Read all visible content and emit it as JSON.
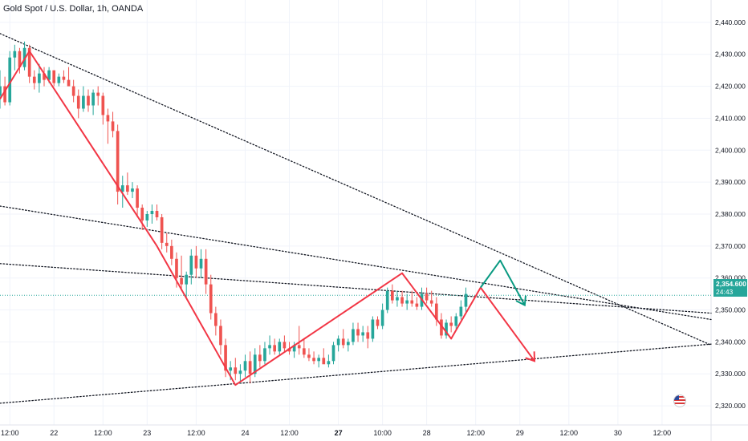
{
  "header": {
    "title": "Gold Spot / U.S. Dollar, 1h, OANDA"
  },
  "price_badge": {
    "price": "2,354.600",
    "countdown": "24:43",
    "color": "#26a69a"
  },
  "icons": {
    "flag": "us-flag-icon"
  },
  "colors": {
    "up": "#26a69a",
    "down": "#ef5350",
    "projection_red": "#f23645",
    "projection_green": "#089981",
    "trendline": "#131722",
    "grid": "#f0f3fa"
  },
  "chart_data": {
    "type": "candlestick",
    "title": "Gold Spot / U.S. Dollar, 1h, OANDA",
    "y_axis": {
      "position": "right",
      "range": [
        2314,
        2447
      ],
      "ticks": [
        2320,
        2330,
        2340,
        2350,
        2360,
        2370,
        2380,
        2390,
        2400,
        2410,
        2420,
        2430,
        2440
      ],
      "tick_labels": [
        "2,320.000",
        "2,330.000",
        "2,340.000",
        "2,350.000",
        "2,360.000",
        "2,370.000",
        "2,380.000",
        "2,390.000",
        "2,400.000",
        "2,410.000",
        "2,420.000",
        "2,430.000",
        "2,440.000"
      ]
    },
    "x_axis": {
      "range": [
        0,
        145
      ],
      "ticks": [
        {
          "x": 2,
          "label": "12:00"
        },
        {
          "x": 11,
          "label": "22"
        },
        {
          "x": 21,
          "label": "12:00"
        },
        {
          "x": 30,
          "label": "23"
        },
        {
          "x": 40,
          "label": "12:00"
        },
        {
          "x": 50,
          "label": "24"
        },
        {
          "x": 59,
          "label": "12:00"
        },
        {
          "x": 69,
          "label": "27",
          "bold": true
        },
        {
          "x": 78,
          "label": "10:00"
        },
        {
          "x": 87,
          "label": "28"
        },
        {
          "x": 97,
          "label": "12:00"
        },
        {
          "x": 106,
          "label": "29"
        },
        {
          "x": 116,
          "label": "12:00"
        },
        {
          "x": 126,
          "label": "30"
        },
        {
          "x": 135,
          "label": "12:00"
        }
      ]
    },
    "last_price": 2354.6,
    "candles": [
      [
        0,
        2417,
        2425,
        2413,
        2420
      ],
      [
        1,
        2420,
        2423,
        2414,
        2415
      ],
      [
        2,
        2415,
        2431,
        2414,
        2429
      ],
      [
        3,
        2429,
        2433,
        2425,
        2431
      ],
      [
        4,
        2431,
        2432,
        2424,
        2426
      ],
      [
        5,
        2426,
        2434,
        2425,
        2432
      ],
      [
        6,
        2432,
        2433,
        2421,
        2423
      ],
      [
        7,
        2423,
        2425,
        2419,
        2421
      ],
      [
        8,
        2421,
        2427,
        2418,
        2424
      ],
      [
        9,
        2424,
        2426,
        2420,
        2422
      ],
      [
        10,
        2422,
        2426,
        2421,
        2425
      ],
      [
        11,
        2425,
        2425,
        2420,
        2421
      ],
      [
        12,
        2421,
        2424,
        2420,
        2423
      ],
      [
        13,
        2423,
        2425,
        2421,
        2422
      ],
      [
        14,
        2422,
        2426,
        2421,
        2420
      ],
      [
        15,
        2420,
        2422,
        2415,
        2417
      ],
      [
        16,
        2417,
        2419,
        2410,
        2413
      ],
      [
        17,
        2413,
        2420,
        2412,
        2417
      ],
      [
        18,
        2417,
        2419,
        2412,
        2414
      ],
      [
        19,
        2414,
        2419,
        2411,
        2418
      ],
      [
        20,
        2418,
        2420,
        2414,
        2417
      ],
      [
        21,
        2417,
        2418,
        2408,
        2411
      ],
      [
        22,
        2411,
        2413,
        2402,
        2409
      ],
      [
        23,
        2409,
        2412,
        2404,
        2406
      ],
      [
        24,
        2406,
        2408,
        2383,
        2387
      ],
      [
        25,
        2387,
        2392,
        2382,
        2389
      ],
      [
        26,
        2389,
        2393,
        2386,
        2387
      ],
      [
        27,
        2387,
        2390,
        2385,
        2388
      ],
      [
        28,
        2388,
        2389,
        2379,
        2382
      ],
      [
        29,
        2382,
        2383,
        2375,
        2378
      ],
      [
        30,
        2378,
        2381,
        2376,
        2380
      ],
      [
        31,
        2380,
        2383,
        2377,
        2381
      ],
      [
        32,
        2381,
        2383,
        2378,
        2379
      ],
      [
        33,
        2379,
        2380,
        2369,
        2371
      ],
      [
        34,
        2371,
        2374,
        2368,
        2370
      ],
      [
        35,
        2370,
        2372,
        2364,
        2366
      ],
      [
        36,
        2366,
        2368,
        2357,
        2360
      ],
      [
        37,
        2360,
        2367,
        2356,
        2358
      ],
      [
        38,
        2358,
        2362,
        2354,
        2361
      ],
      [
        39,
        2361,
        2369,
        2358,
        2367
      ],
      [
        40,
        2367,
        2370,
        2360,
        2363
      ],
      [
        41,
        2363,
        2369,
        2360,
        2366
      ],
      [
        42,
        2366,
        2369,
        2355,
        2358
      ],
      [
        43,
        2358,
        2361,
        2347,
        2349
      ],
      [
        44,
        2349,
        2351,
        2342,
        2345
      ],
      [
        45,
        2345,
        2347,
        2336,
        2339
      ],
      [
        46,
        2339,
        2341,
        2329,
        2331
      ],
      [
        47,
        2331,
        2334,
        2328,
        2332
      ],
      [
        48,
        2332,
        2335,
        2328,
        2330
      ],
      [
        49,
        2330,
        2333,
        2327,
        2331
      ],
      [
        50,
        2331,
        2336,
        2329,
        2334
      ],
      [
        51,
        2334,
        2337,
        2327,
        2330
      ],
      [
        52,
        2330,
        2338,
        2329,
        2336
      ],
      [
        53,
        2336,
        2339,
        2332,
        2334
      ],
      [
        54,
        2334,
        2340,
        2333,
        2338
      ],
      [
        55,
        2338,
        2342,
        2336,
        2339
      ],
      [
        56,
        2339,
        2341,
        2336,
        2337
      ],
      [
        57,
        2337,
        2341,
        2336,
        2340
      ],
      [
        58,
        2340,
        2342,
        2337,
        2338
      ],
      [
        59,
        2338,
        2340,
        2336,
        2337
      ],
      [
        60,
        2337,
        2340,
        2335,
        2339
      ],
      [
        61,
        2339,
        2345,
        2336,
        2338
      ],
      [
        62,
        2338,
        2341,
        2335,
        2336
      ],
      [
        63,
        2336,
        2338,
        2334,
        2335
      ],
      [
        64,
        2335,
        2337,
        2333,
        2334
      ],
      [
        65,
        2334,
        2336,
        2332,
        2335
      ],
      [
        66,
        2335,
        2338,
        2334,
        2333
      ],
      [
        67,
        2333,
        2336,
        2332,
        2334
      ],
      [
        68,
        2334,
        2340,
        2333,
        2339
      ],
      [
        69,
        2339,
        2342,
        2337,
        2341
      ],
      [
        70,
        2341,
        2344,
        2338,
        2339
      ],
      [
        71,
        2339,
        2341,
        2337,
        2340
      ],
      [
        72,
        2340,
        2346,
        2339,
        2344
      ],
      [
        73,
        2344,
        2346,
        2340,
        2342
      ],
      [
        74,
        2342,
        2345,
        2340,
        2343
      ],
      [
        75,
        2343,
        2345,
        2338,
        2341
      ],
      [
        76,
        2341,
        2348,
        2340,
        2347
      ],
      [
        77,
        2347,
        2348,
        2344,
        2345
      ],
      [
        78,
        2345,
        2352,
        2344,
        2350
      ],
      [
        79,
        2350,
        2357,
        2349,
        2356
      ],
      [
        80,
        2356,
        2358,
        2352,
        2353
      ],
      [
        81,
        2353,
        2356,
        2351,
        2354
      ],
      [
        82,
        2354,
        2356,
        2351,
        2352
      ],
      [
        83,
        2352,
        2355,
        2350,
        2353
      ],
      [
        84,
        2353,
        2356,
        2351,
        2352
      ],
      [
        85,
        2352,
        2354,
        2350,
        2351
      ],
      [
        86,
        2351,
        2357,
        2350,
        2355
      ],
      [
        87,
        2355,
        2357,
        2352,
        2353
      ],
      [
        88,
        2353,
        2356,
        2351,
        2352
      ],
      [
        89,
        2352,
        2354,
        2345,
        2347
      ],
      [
        90,
        2347,
        2349,
        2341,
        2342
      ],
      [
        91,
        2342,
        2347,
        2341,
        2346
      ],
      [
        92,
        2346,
        2348,
        2343,
        2345
      ],
      [
        93,
        2345,
        2349,
        2344,
        2348
      ],
      [
        94,
        2348,
        2353,
        2347,
        2351
      ],
      [
        95,
        2351,
        2357,
        2349,
        2355
      ]
    ],
    "trendlines": [
      {
        "from": [
          0,
          2436.5
        ],
        "to": [
          145,
          2339
        ]
      },
      {
        "from": [
          0,
          2382.5
        ],
        "to": [
          145,
          2347
        ]
      },
      {
        "from": [
          0,
          2364.5
        ],
        "to": [
          145,
          2349
        ]
      },
      {
        "from": [
          0,
          2320.8
        ],
        "to": [
          145,
          2339.3
        ]
      }
    ],
    "projections": [
      {
        "color": "red",
        "points": [
          [
            0,
            2416
          ],
          [
            6,
            2431
          ],
          [
            32,
            2370
          ],
          [
            48,
            2326.5
          ],
          [
            82,
            2361.5
          ],
          [
            92,
            2341
          ],
          [
            98,
            2357
          ],
          [
            109,
            2334
          ]
        ],
        "arrow": true
      },
      {
        "color": "green",
        "points": [
          [
            98,
            2357
          ],
          [
            102,
            2365.5
          ],
          [
            107,
            2351.5
          ]
        ],
        "arrow": true
      }
    ],
    "grid": true
  }
}
